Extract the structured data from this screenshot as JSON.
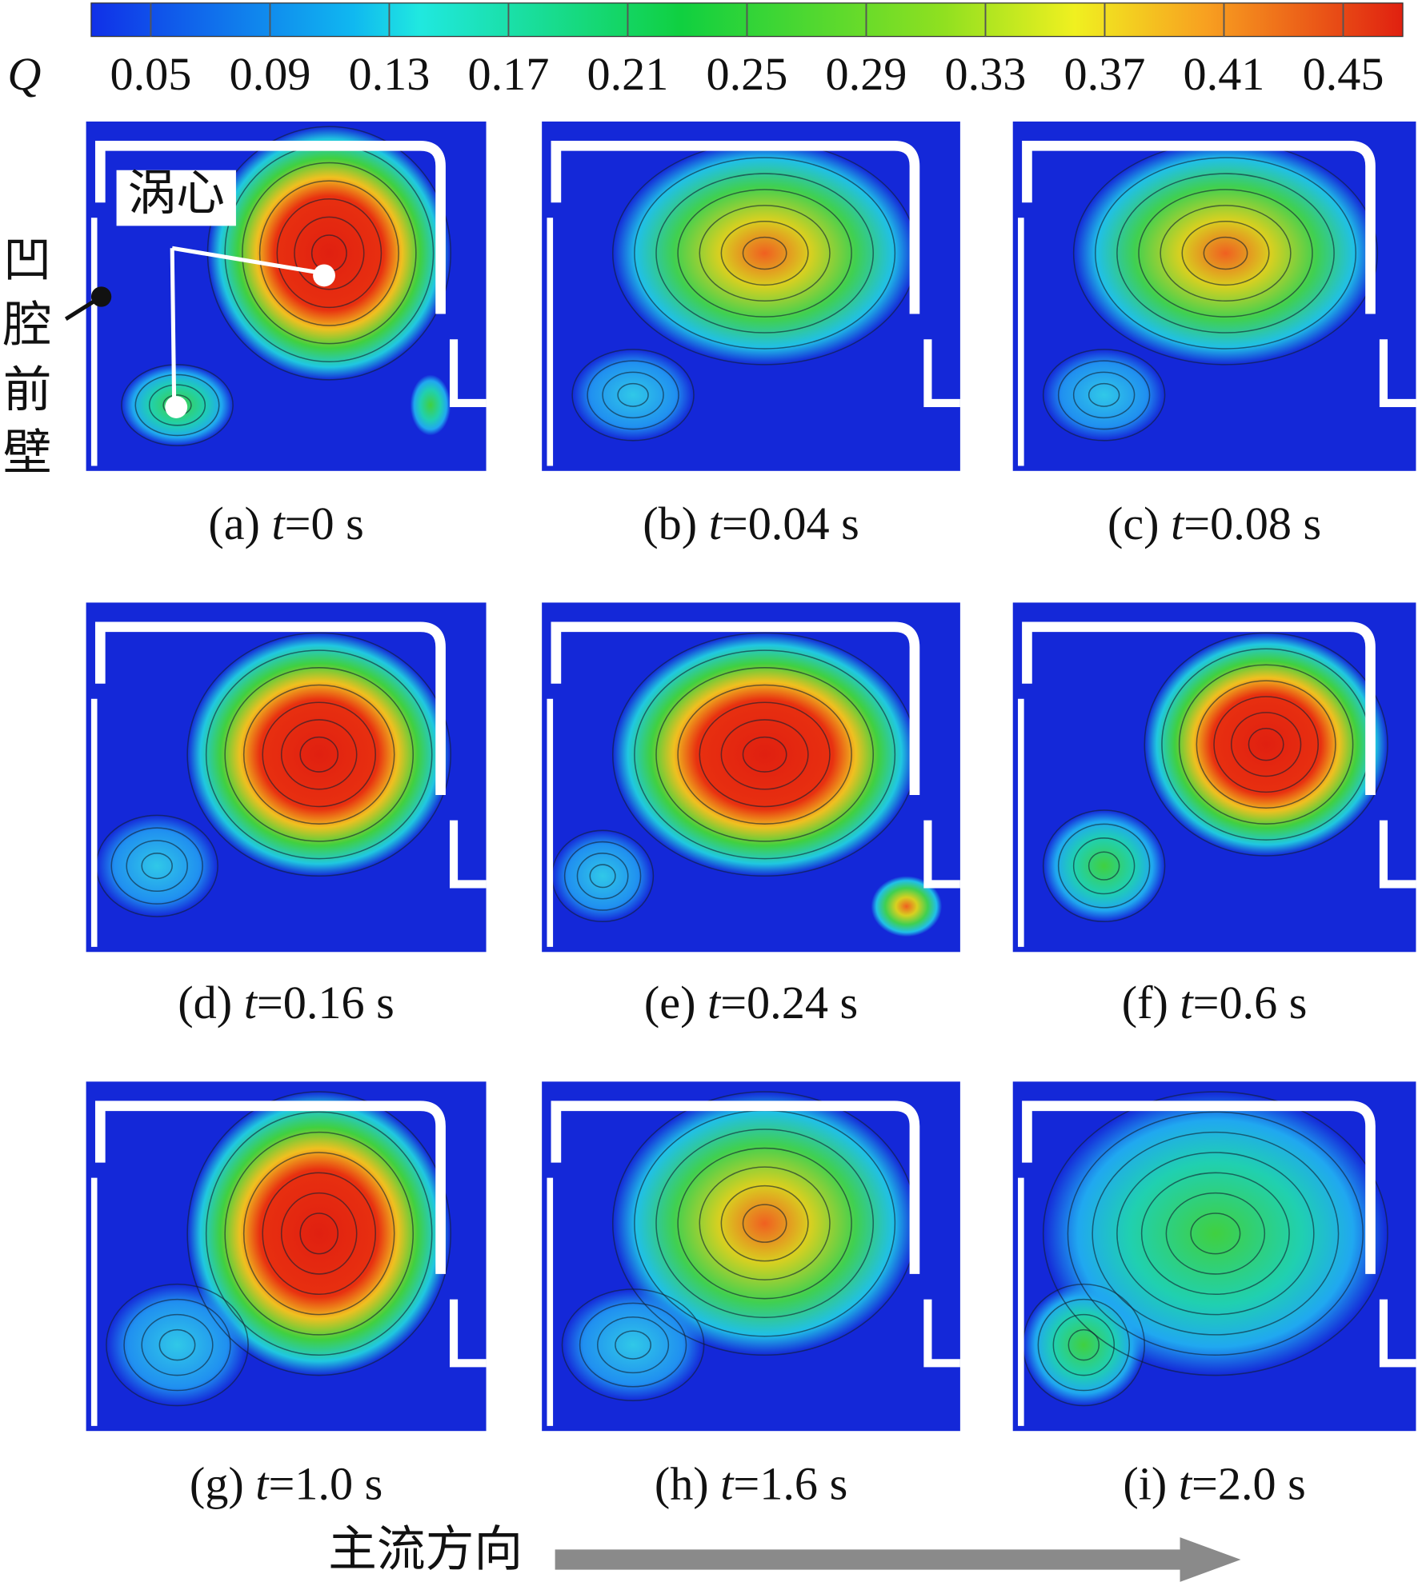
{
  "colorbar": {
    "label": "Q",
    "range": [
      0.03,
      0.47
    ],
    "ticks": [
      0.05,
      0.09,
      0.13,
      0.17,
      0.21,
      0.25,
      0.29,
      0.33,
      0.37,
      0.41,
      0.45
    ]
  },
  "annotations": {
    "vortex_core": "涡心",
    "front_wall": [
      "凹",
      "腔",
      "前",
      "壁"
    ],
    "flow_direction": "主流方向"
  },
  "panels": [
    {
      "tag": "(a) ",
      "var": "t",
      "time": "=0 s"
    },
    {
      "tag": "(b) ",
      "var": "t",
      "time": "=0.04 s"
    },
    {
      "tag": "(c) ",
      "var": "t",
      "time": "=0.08 s"
    },
    {
      "tag": "(d) ",
      "var": "t",
      "time": "=0.16 s"
    },
    {
      "tag": "(e) ",
      "var": "t",
      "time": "=0.24 s"
    },
    {
      "tag": "(f) ",
      "var": "t",
      "time": "=0.6 s"
    },
    {
      "tag": "(g) ",
      "var": "t",
      "time": "=1.0 s"
    },
    {
      "tag": "(h) ",
      "var": "t",
      "time": "=1.6 s"
    },
    {
      "tag": "(i) ",
      "var": "t",
      "time": "=2.0 s"
    }
  ]
}
